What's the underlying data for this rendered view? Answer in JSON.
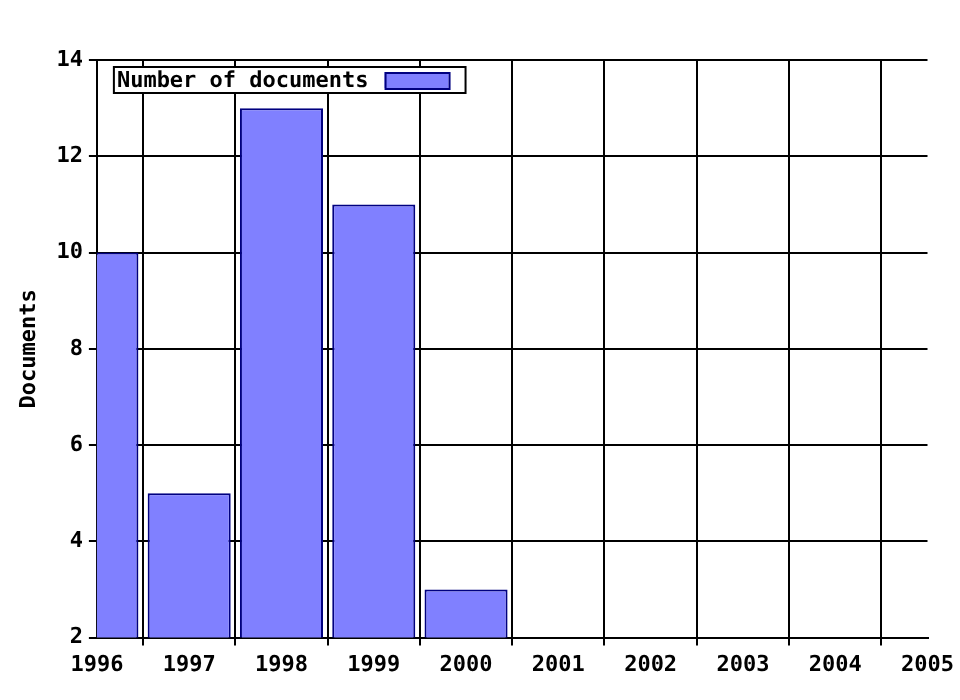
{
  "chart_data": {
    "type": "bar",
    "ylabel": "Documents",
    "x": [
      1996,
      1997,
      1998,
      1999,
      2000
    ],
    "series": [
      {
        "name": "Number of documents",
        "color": "#8080ff",
        "values": [
          10,
          5,
          13,
          11,
          3
        ]
      }
    ],
    "xlim": [
      1996,
      2005
    ],
    "xticks": [
      1996,
      1997,
      1998,
      1999,
      2000,
      2001,
      2002,
      2003,
      2004,
      2005
    ],
    "ylim": [
      2,
      14
    ],
    "yticks": [
      2,
      4,
      6,
      8,
      10,
      12,
      14
    ],
    "grid": true,
    "legend": "top left"
  }
}
